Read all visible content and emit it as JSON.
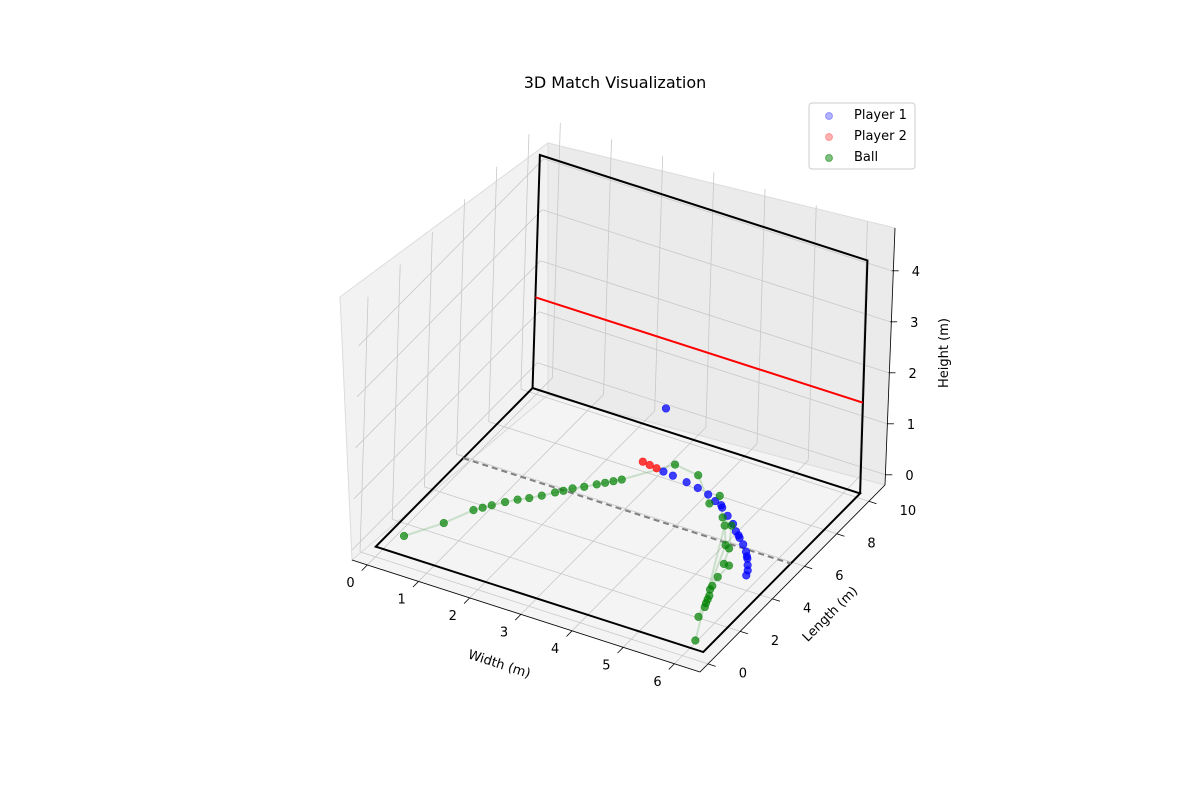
{
  "chart_data": {
    "type": "scatter",
    "title": "3D Match Visualization",
    "xlabel": "Width (m)",
    "ylabel": "Length (m)",
    "zlabel": "Height (m)",
    "xlim": [
      -0.3,
      6.5
    ],
    "ylim": [
      -0.5,
      11
    ],
    "zlim": [
      -0.2,
      4.8
    ],
    "xticks": [
      "0",
      "1",
      "2",
      "3",
      "4",
      "5",
      "6"
    ],
    "yticks": [
      "0",
      "2",
      "4",
      "6",
      "8",
      "10"
    ],
    "zticks": [
      "0",
      "1",
      "2",
      "3",
      "4"
    ],
    "legend_position": "top-right",
    "court": {
      "width": 6.4,
      "length": 9.75,
      "front_wall_height": 4.57,
      "tin_line_height": 1.78,
      "short_line_y": 5.44,
      "floor_line_color": "#000000",
      "front_wall_color": "#000000",
      "tin_line_color": "#ff0000",
      "short_line_color": "#808080"
    },
    "series": [
      {
        "name": "Player 1",
        "color": "#0000ff",
        "points": [
          [
            4.2,
            7.3,
            0.05
          ],
          [
            4.4,
            7.1,
            0.05
          ],
          [
            4.6,
            6.9,
            0.05
          ],
          [
            4.8,
            6.6,
            0.05
          ],
          [
            5.0,
            6.3,
            0.05
          ],
          [
            5.15,
            6.0,
            0.05
          ],
          [
            5.3,
            5.75,
            0.05
          ],
          [
            5.45,
            5.5,
            0.05
          ],
          [
            5.6,
            5.2,
            0.05
          ],
          [
            5.72,
            4.9,
            0.05
          ],
          [
            5.82,
            4.6,
            0.05
          ],
          [
            5.9,
            4.35,
            0.05
          ],
          [
            5.95,
            4.1,
            0.05
          ],
          [
            3.95,
            7.45,
            0.05
          ],
          [
            3.7,
            7.55,
            0.05
          ],
          [
            3.4,
            7.65,
            0.05
          ],
          [
            3.2,
            7.7,
            0.05
          ],
          [
            4.55,
            7.0,
            0.05
          ],
          [
            5.25,
            5.85,
            0.05
          ],
          [
            5.68,
            5.0,
            0.05
          ],
          [
            3.0,
            8.4,
            1.0
          ]
        ]
      },
      {
        "name": "Player 2",
        "color": "#ff0000",
        "points": [
          [
            2.9,
            7.8,
            0.05
          ],
          [
            3.05,
            7.75,
            0.05
          ],
          [
            2.75,
            7.85,
            0.05
          ]
        ]
      },
      {
        "name": "Ball",
        "color": "#008000",
        "points": [
          [
            0.3,
            0.8,
            0.05
          ],
          [
            0.7,
            2.0,
            0.05
          ],
          [
            0.95,
            3.05,
            0.05
          ],
          [
            1.05,
            3.3,
            0.05
          ],
          [
            1.15,
            3.55,
            0.05
          ],
          [
            1.3,
            3.9,
            0.05
          ],
          [
            1.45,
            4.2,
            0.05
          ],
          [
            1.6,
            4.45,
            0.05
          ],
          [
            1.75,
            4.75,
            0.05
          ],
          [
            1.9,
            5.1,
            0.05
          ],
          [
            2.0,
            5.3,
            0.05
          ],
          [
            2.1,
            5.55,
            0.05
          ],
          [
            2.25,
            5.8,
            0.05
          ],
          [
            2.4,
            6.1,
            0.05
          ],
          [
            2.5,
            6.3,
            0.05
          ],
          [
            2.6,
            6.5,
            0.05
          ],
          [
            2.7,
            6.7,
            0.05
          ],
          [
            3.45,
            7.6,
            0.3
          ],
          [
            3.95,
            7.45,
            0.3
          ],
          [
            4.35,
            6.9,
            0.05
          ],
          [
            4.5,
            7.05,
            0.2
          ],
          [
            4.75,
            6.45,
            0.05
          ],
          [
            5.0,
            6.2,
            0.05
          ],
          [
            5.3,
            5.1,
            0.05
          ],
          [
            5.45,
            4.3,
            0.05
          ],
          [
            5.55,
            4.3,
            0.05
          ],
          [
            5.55,
            3.6,
            0.05
          ],
          [
            5.6,
            3.1,
            0.05
          ],
          [
            5.62,
            2.9,
            0.05
          ],
          [
            5.7,
            2.6,
            0.05
          ],
          [
            5.73,
            2.4,
            0.05
          ],
          [
            5.76,
            2.2,
            0.05
          ],
          [
            5.8,
            2.0,
            0.05
          ],
          [
            5.85,
            1.45,
            0.05
          ],
          [
            5.2,
            5.2,
            0.05
          ],
          [
            4.9,
            6.1,
            0.05
          ],
          [
            6.15,
            0.3,
            0.05
          ]
        ]
      }
    ],
    "ball_path_color": "#7ab87a"
  }
}
